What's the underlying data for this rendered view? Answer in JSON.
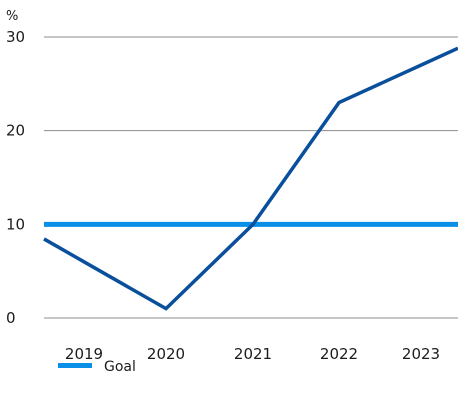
{
  "chart_data": {
    "type": "line",
    "y_unit": "%",
    "categories": [
      "2019",
      "2020",
      "2021",
      "2022",
      "2023"
    ],
    "ylim": [
      0,
      30
    ],
    "yticks": [
      0,
      10,
      20,
      30
    ],
    "grid": "horizontal",
    "series": [
      {
        "values": [
          6,
          1,
          10,
          23,
          27
        ],
        "color": "#0a4f9c"
      }
    ],
    "goal": {
      "name": "Goal",
      "value": 10,
      "color": "#0a8fe8"
    },
    "legend": {
      "placement": "bottom-left"
    }
  }
}
